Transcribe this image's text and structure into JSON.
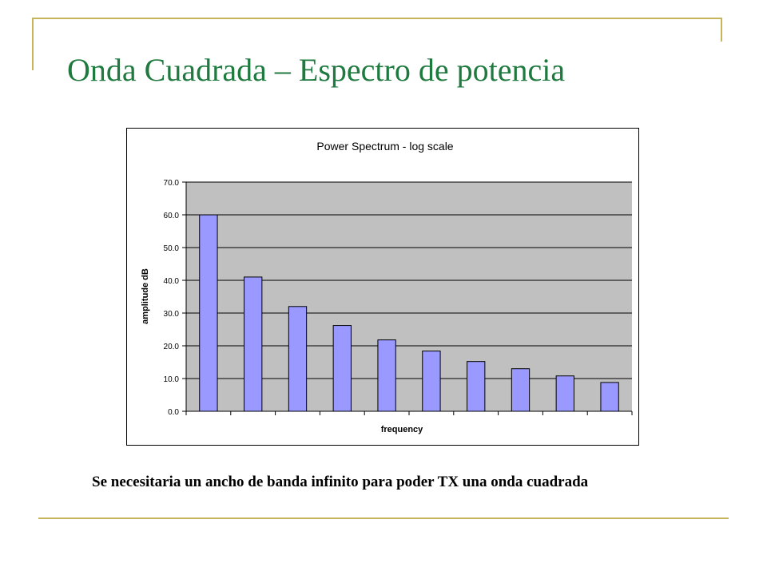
{
  "slide": {
    "title": "Onda Cuadrada – Espectro de potencia",
    "caption": "Se necesitaria un ancho de banda  infinito para poder TX una onda cuadrada",
    "accent_color": "#c8b45a",
    "title_color": "#1f7a3f"
  },
  "chart_data": {
    "type": "bar",
    "title": "Power Spectrum - log scale",
    "xlabel": "frequency",
    "ylabel": "amplitude dB",
    "ylim": [
      0,
      70
    ],
    "yticks": [
      "0.0",
      "10.0",
      "20.0",
      "30.0",
      "40.0",
      "50.0",
      "60.0",
      "70.0"
    ],
    "grid": true,
    "legend": "none",
    "plot_background": "#c0c0c0",
    "bar_color": "#9999ff",
    "values": [
      60.0,
      41.0,
      32.0,
      26.2,
      21.8,
      18.4,
      15.2,
      13.0,
      10.8,
      8.8
    ]
  }
}
